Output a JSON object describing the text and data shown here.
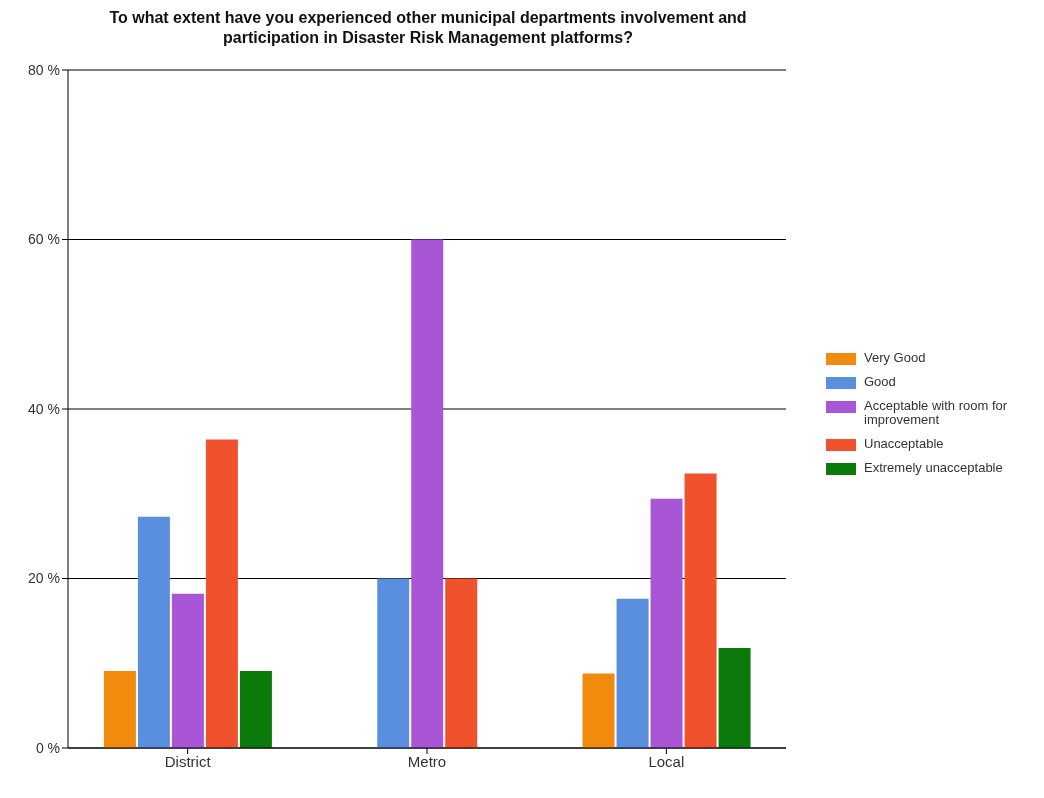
{
  "chart_data": {
    "type": "bar",
    "title": "To what extent have you experienced other municipal departments involvement and participation in Disaster Risk Management platforms?",
    "categories": [
      "District",
      "Metro",
      "Local"
    ],
    "series": [
      {
        "name": "Very Good",
        "color": "#f28a0e",
        "values": [
          9.1,
          0,
          8.8
        ]
      },
      {
        "name": "Good",
        "color": "#5a8fe0",
        "values": [
          27.3,
          20,
          17.6
        ]
      },
      {
        "name": "Acceptable with room for improvement",
        "color": "#a855d6",
        "values": [
          18.2,
          60,
          29.4
        ]
      },
      {
        "name": "Unacceptable",
        "color": "#f0522e",
        "values": [
          36.4,
          20,
          32.4
        ]
      },
      {
        "name": "Extremely unacceptable",
        "color": "#0b7a0b",
        "values": [
          9.1,
          0,
          11.8
        ]
      }
    ],
    "ylim": [
      0,
      80
    ],
    "yticks": [
      {
        "value": 0,
        "label": "0 %"
      },
      {
        "value": 20,
        "label": "20 %"
      },
      {
        "value": 40,
        "label": "40 %"
      },
      {
        "value": 60,
        "label": "60 %"
      },
      {
        "value": 80,
        "label": "80 %"
      }
    ],
    "grid": "y",
    "legend": "right"
  }
}
